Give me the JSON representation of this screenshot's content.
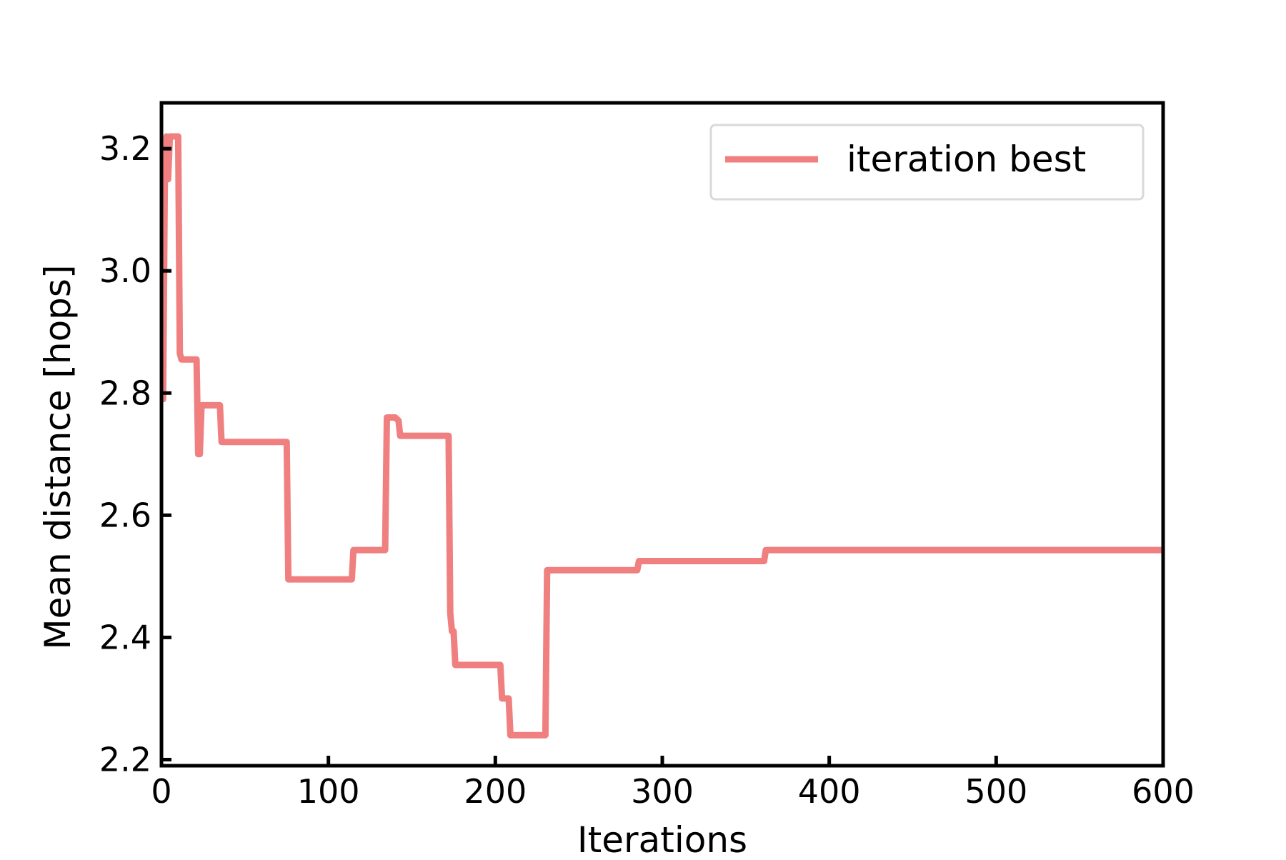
{
  "chart_data": {
    "type": "line",
    "title": "",
    "xlabel": "Iterations",
    "ylabel": "Mean distance [hops]",
    "xlim": [
      0,
      600
    ],
    "ylim": [
      2.19,
      3.275
    ],
    "xticks": [
      0,
      100,
      200,
      300,
      400,
      500,
      600
    ],
    "yticks": [
      2.2,
      2.4,
      2.6,
      2.8,
      3.0,
      3.2
    ],
    "xtick_labels": [
      "0",
      "100",
      "200",
      "300",
      "400",
      "500",
      "600"
    ],
    "ytick_labels": [
      "2.2",
      "2.4",
      "2.6",
      "2.8",
      "3.0",
      "3.2"
    ],
    "grid": false,
    "legend": {
      "position": "top-right",
      "entries": [
        "iteration best"
      ]
    },
    "series": [
      {
        "name": "iteration best",
        "color": "#f08080",
        "x": [
          0,
          1,
          2,
          3,
          4,
          5,
          6,
          7,
          8,
          9,
          10,
          11,
          12,
          13,
          14,
          20,
          21,
          22,
          23,
          24,
          25,
          35,
          36,
          37,
          74,
          75,
          76,
          113,
          114,
          115,
          134,
          135,
          136,
          140,
          142,
          143,
          144,
          172,
          173,
          174,
          175,
          176,
          177,
          203,
          204,
          205,
          208,
          209,
          210,
          229,
          230,
          231,
          284,
          285,
          286,
          360,
          361,
          362,
          600
        ],
        "y": [
          2.79,
          2.79,
          3.15,
          3.22,
          3.15,
          3.22,
          3.22,
          3.22,
          3.22,
          3.22,
          3.22,
          2.865,
          2.855,
          2.855,
          2.855,
          2.855,
          2.855,
          2.7,
          2.7,
          2.78,
          2.78,
          2.78,
          2.72,
          2.72,
          2.72,
          2.72,
          2.495,
          2.495,
          2.495,
          2.543,
          2.543,
          2.76,
          2.76,
          2.76,
          2.755,
          2.73,
          2.73,
          2.73,
          2.44,
          2.41,
          2.41,
          2.355,
          2.355,
          2.355,
          2.3,
          2.3,
          2.3,
          2.24,
          2.24,
          2.24,
          2.24,
          2.51,
          2.51,
          2.51,
          2.525,
          2.525,
          2.525,
          2.543,
          2.543
        ]
      }
    ]
  }
}
